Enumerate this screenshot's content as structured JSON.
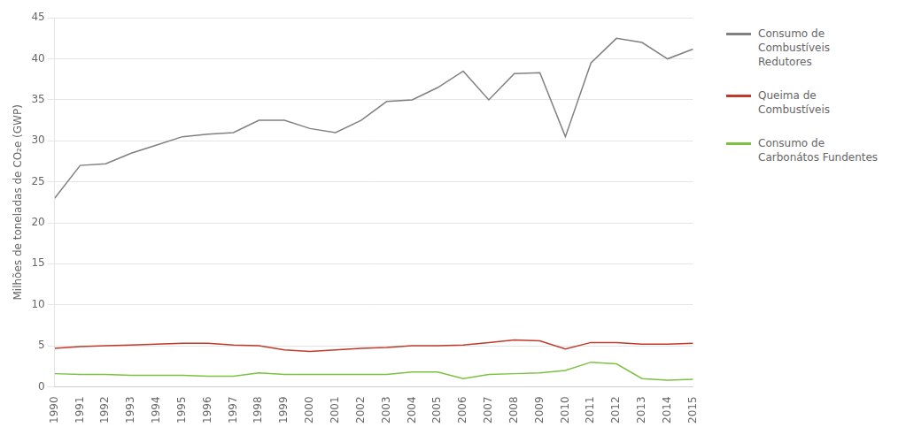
{
  "chart_data": {
    "type": "line",
    "x": [
      1990,
      1991,
      1992,
      1993,
      1994,
      1995,
      1996,
      1997,
      1998,
      1999,
      2000,
      2001,
      2002,
      2003,
      2004,
      2005,
      2006,
      2007,
      2008,
      2009,
      2010,
      2011,
      2012,
      2013,
      2014,
      2015
    ],
    "xlim": [
      1990,
      2015
    ],
    "xticks": [
      1990,
      1991,
      1992,
      1993,
      1994,
      1995,
      1996,
      1997,
      1998,
      1999,
      2000,
      2001,
      2002,
      2003,
      2004,
      2005,
      2006,
      2007,
      2008,
      2009,
      2010,
      2011,
      2012,
      2013,
      2014,
      2015
    ],
    "ylabel": "Milhões de toneladas de CO₂e (GWP)",
    "ylim": [
      0,
      45
    ],
    "yticks": [
      0,
      5,
      10,
      15,
      20,
      25,
      30,
      35,
      40,
      45
    ],
    "grid": "y",
    "legend": "right",
    "series": [
      {
        "name": "Consumo de\nCombustíveis\nRedutores",
        "color": "#808080",
        "values": [
          23.0,
          27.0,
          27.2,
          28.5,
          29.5,
          30.5,
          30.8,
          31.0,
          32.5,
          32.5,
          31.5,
          31.0,
          32.5,
          34.8,
          35.0,
          36.5,
          38.5,
          35.0,
          38.2,
          38.3,
          30.5,
          39.5,
          42.5,
          42.0,
          40.0,
          41.2
        ]
      },
      {
        "name": "Queima de\nCombustíveis",
        "color": "#c0392b",
        "values": [
          4.7,
          4.9,
          5.0,
          5.1,
          5.2,
          5.3,
          5.3,
          5.1,
          5.0,
          4.5,
          4.3,
          4.5,
          4.7,
          4.8,
          5.0,
          5.0,
          5.1,
          5.4,
          5.7,
          5.6,
          4.6,
          5.4,
          5.4,
          5.2,
          5.2,
          5.3
        ]
      },
      {
        "name": "Consumo de\nCarbonátos Fundentes",
        "color": "#7dc142",
        "values": [
          1.6,
          1.5,
          1.5,
          1.4,
          1.4,
          1.4,
          1.3,
          1.3,
          1.7,
          1.5,
          1.5,
          1.5,
          1.5,
          1.5,
          1.8,
          1.8,
          1.0,
          1.5,
          1.6,
          1.7,
          2.0,
          3.0,
          2.8,
          1.0,
          0.8,
          0.9
        ]
      }
    ]
  }
}
